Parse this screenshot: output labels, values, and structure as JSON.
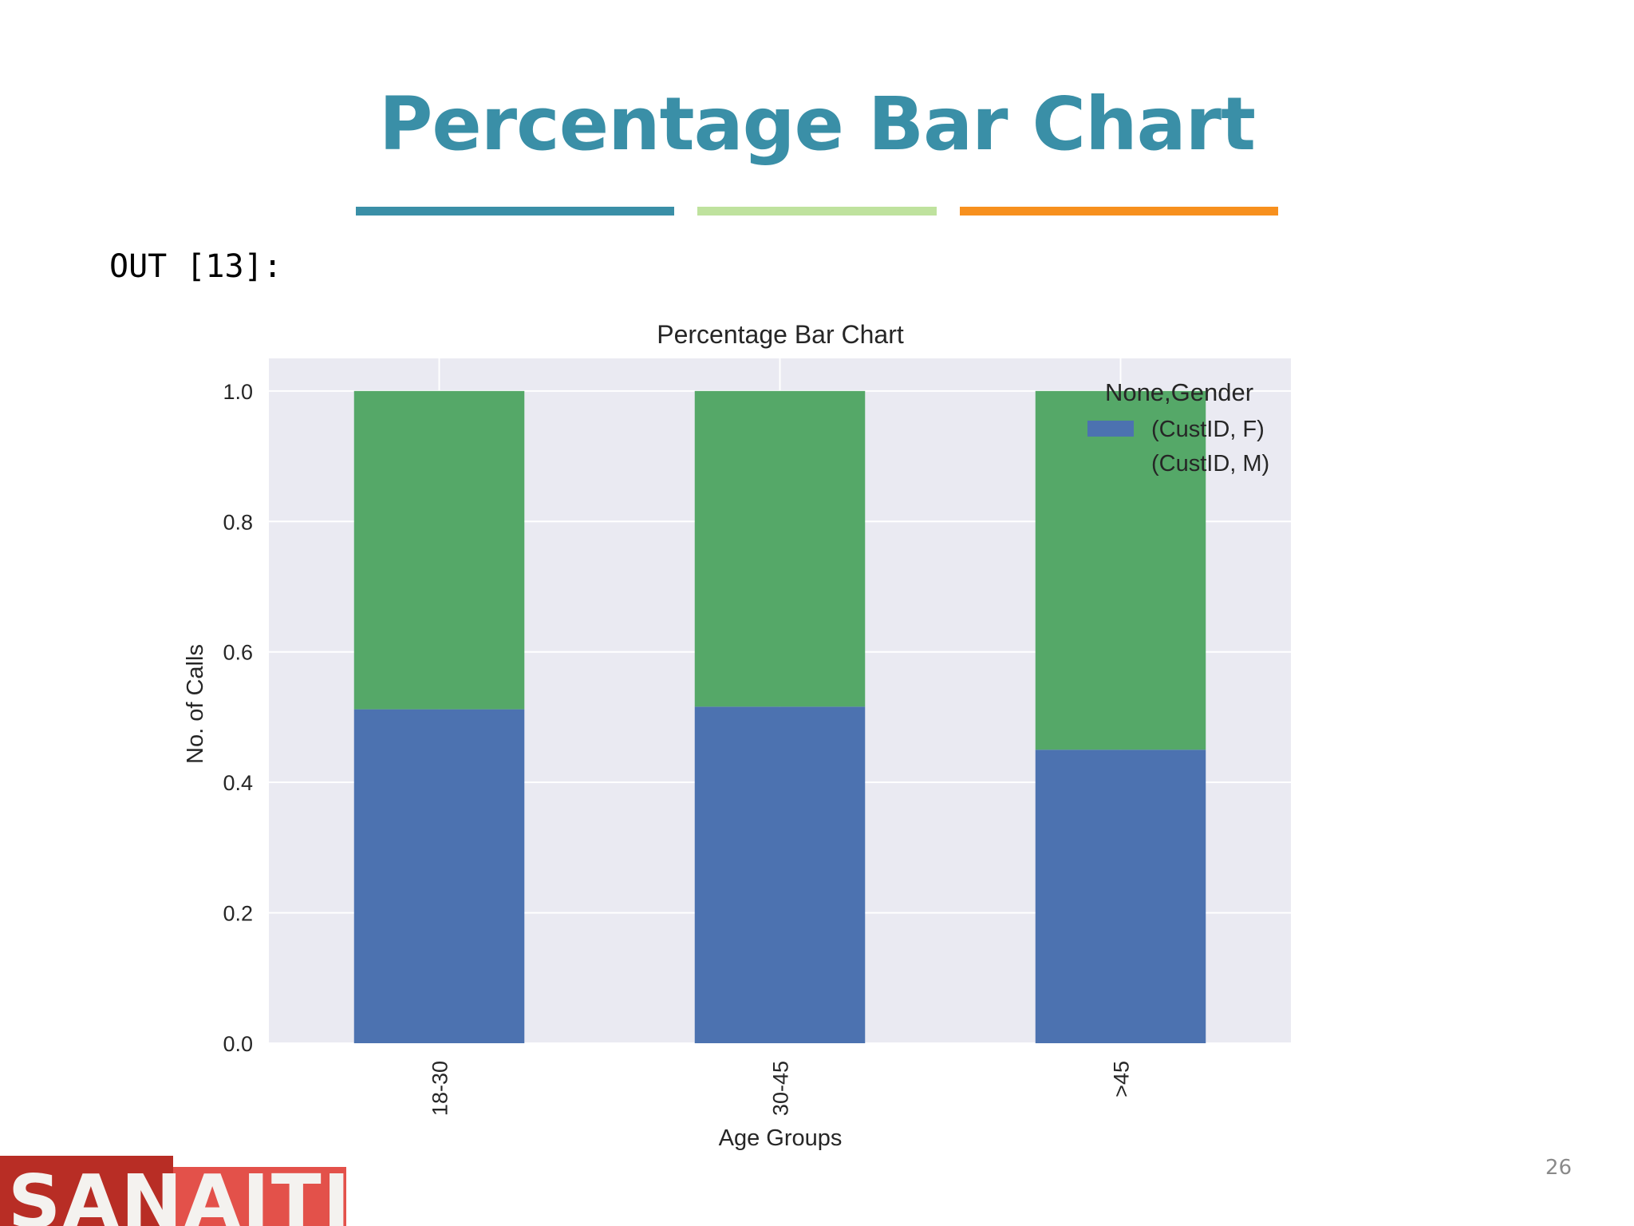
{
  "slide": {
    "title": "Percentage Bar Chart",
    "title_color": "#3a8fa7",
    "decor_colors": [
      "#3a8fa7",
      "#bfe29e",
      "#f7901e"
    ],
    "output_prompt": "OUT [13]:",
    "page_number": "26",
    "logo_text": "SANAITICS"
  },
  "chart_data": {
    "type": "bar",
    "stacked": true,
    "title": "Percentage Bar Chart",
    "xlabel": "Age Groups",
    "ylabel": "No. of Calls",
    "categories": [
      "18-30",
      "30-45",
      ">45"
    ],
    "series": [
      {
        "name": "(CustID, F)",
        "color": "#4c72b0",
        "values": [
          0.512,
          0.516,
          0.45
        ]
      },
      {
        "name": "(CustID, M)",
        "color": "#55a868",
        "values": [
          0.488,
          0.484,
          0.55
        ]
      }
    ],
    "ylim": [
      0,
      1.05
    ],
    "yticks": [
      "0.0",
      "0.2",
      "0.4",
      "0.6",
      "0.8",
      "1.0"
    ],
    "legend_title": "None,Gender",
    "legend_position": "top-right",
    "grid": true,
    "plot_background": "#eaeaf2"
  }
}
